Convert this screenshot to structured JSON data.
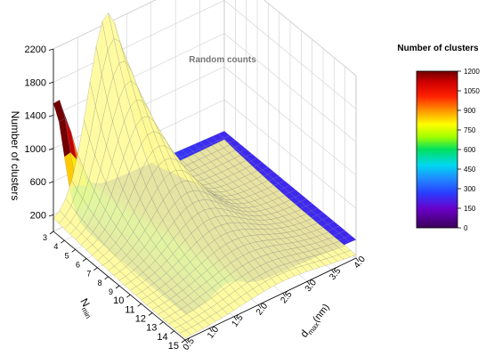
{
  "chart_data": {
    "type": "surface3d",
    "title": "",
    "annotation": "Random counts",
    "zlabel": "Number of clusters",
    "xlabel": "N",
    "xlabel_sub": "min",
    "ylabel": "d",
    "ylabel_sub": "max",
    "ylabel_unit": "(nm)",
    "z_ticks": [
      200,
      600,
      1000,
      1400,
      1800,
      2200
    ],
    "z_range": [
      0,
      2200
    ],
    "x_ticks": [
      3,
      4,
      5,
      6,
      7,
      8,
      9,
      10,
      11,
      12,
      13,
      14,
      15
    ],
    "x_tick_labels_shown": [
      3,
      4,
      5,
      6,
      7,
      8,
      9,
      10,
      11,
      12,
      13,
      14,
      15
    ],
    "x_range": [
      3,
      15
    ],
    "y_ticks": [
      0.5,
      1.0,
      1.5,
      2.0,
      2.5,
      3.0,
      3.5,
      4.0
    ],
    "y_tick_labels": [
      "0.5",
      "1.0",
      "1.5",
      "2.0",
      "2.5",
      "3.0",
      "3.5",
      "4.0"
    ],
    "y_range": [
      0.5,
      4.0
    ],
    "colorbar": {
      "title": "Number of clusters",
      "ticks": [
        0,
        150,
        300,
        450,
        600,
        750,
        900,
        1050,
        1200
      ],
      "range": [
        0,
        1200
      ]
    },
    "surfaces": [
      {
        "name": "",
        "style": "colormap",
        "peak": {
          "x": 3,
          "y": 0.5,
          "z": 1200
        },
        "description_values": {
          "x_min_plateau_z": 250,
          "far_corner_z": 180
        }
      },
      {
        "name": "Random counts",
        "style": "yellow-wireframe",
        "peak": {
          "x": 3,
          "y": 1.6,
          "z": 2200
        },
        "ridge_end": {
          "x": 15,
          "y": 2.5,
          "z": 0
        }
      }
    ]
  }
}
